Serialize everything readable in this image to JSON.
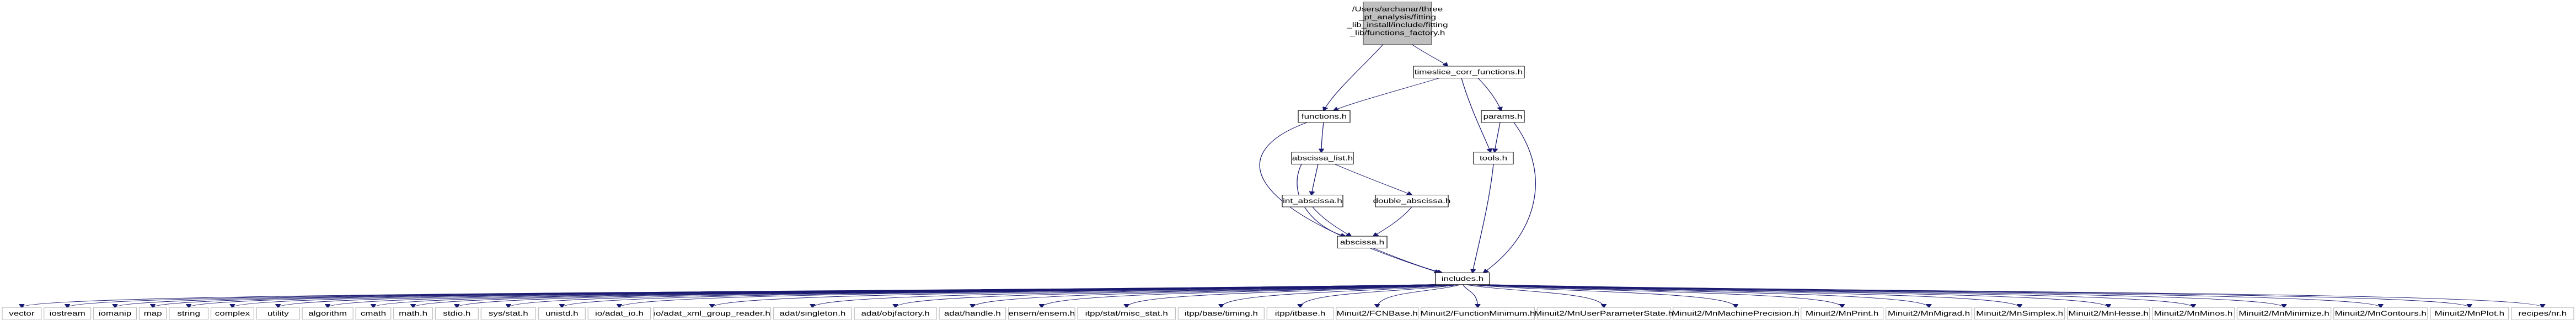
{
  "root": {
    "lines": [
      "/Users/archanar/three",
      "_pt_analysis/fitting",
      "_lib_install/include/fitting",
      "_lib/functions_factory.h"
    ]
  },
  "nodes": {
    "timeslice_corr_functions": "timeslice_corr_functions.h",
    "functions": "functions.h",
    "params": "params.h",
    "abscissa_list": "abscissa_list.h",
    "tools": "tools.h",
    "int_abscissa": "int_abscissa.h",
    "double_abscissa": "double_abscissa.h",
    "abscissa": "abscissa.h",
    "includes": "includes.h"
  },
  "leaves": [
    "vector",
    "iostream",
    "iomanip",
    "map",
    "string",
    "complex",
    "utility",
    "algorithm",
    "cmath",
    "math.h",
    "stdio.h",
    "sys/stat.h",
    "unistd.h",
    "io/adat_io.h",
    "io/adat_xml_group_reader.h",
    "adat/singleton.h",
    "adat/objfactory.h",
    "adat/handle.h",
    "ensem/ensem.h",
    "itpp/stat/misc_stat.h",
    "itpp/base/timing.h",
    "itpp/itbase.h",
    "Minuit2/FCNBase.h",
    "Minuit2/FunctionMinimum.h",
    "Minuit2/MnUserParameterState.h",
    "Minuit2/MnMachinePrecision.h",
    "Minuit2/MnPrint.h",
    "Minuit2/MnMigrad.h",
    "Minuit2/MnSimplex.h",
    "Minuit2/MnHesse.h",
    "Minuit2/MnMinos.h",
    "Minuit2/MnMinimize.h",
    "Minuit2/MnContours.h",
    "Minuit2/MnPlot.h",
    "recipes/nr.h"
  ],
  "colors": {
    "edge": "#191970",
    "root_fill": "#bfbfbf",
    "leaf_border": "#bfbfbf"
  }
}
